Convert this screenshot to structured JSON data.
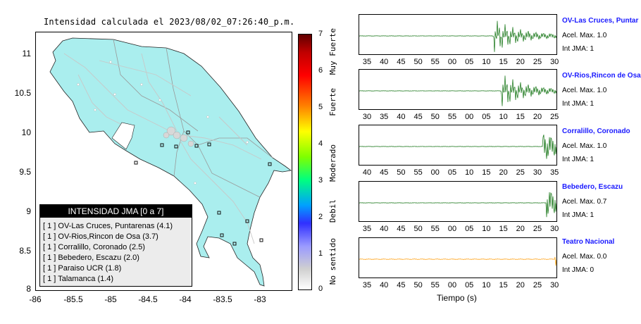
{
  "title": "Intensidad calculada el 2023/08/02_07:26:40_p.m.",
  "map": {
    "y_ticks": [
      "11",
      "10.5",
      "10",
      "9.5",
      "9",
      "8.5",
      "8"
    ],
    "x_ticks": [
      "-86",
      "-85.5",
      "-85",
      "-84.5",
      "-84",
      "-83.5",
      "-83"
    ]
  },
  "legend": {
    "header": "INTENSIDAD JMA [0 a 7]",
    "items": [
      "[ 1 ]  OV-Las Cruces, Puntarenas (4.1)",
      "[ 1 ]  OV-Rios,Rincon de Osa (3.7)",
      "[ 1 ]  Corralillo, Coronado (2.5)",
      "[ 1 ]  Bebedero, Escazu (2.0)",
      "[ 1 ]  Paraiso UCR (1.8)",
      "[ 1 ]  Talamanca (1.4)"
    ]
  },
  "colorbar": {
    "ticks": [
      "7",
      "6",
      "5",
      "4",
      "3",
      "2",
      "1",
      "0"
    ],
    "labels": [
      "Muy Fuerte",
      "Fuerte",
      "Moderado",
      "Debil",
      "No sentido"
    ]
  },
  "panels": [
    {
      "name": "OV-Las Cruces, Puntar",
      "accel": "Acel. Max. 1.0",
      "jma": "Int JMA: 1",
      "ticks": [
        "35",
        "40",
        "45",
        "50",
        "55",
        "00",
        "05",
        "10",
        "15",
        "20",
        "25",
        "30"
      ],
      "color": "#0a6e0a"
    },
    {
      "name": "OV-Rios,Rincon de Osa",
      "accel": "Acel. Max. 1.0",
      "jma": "Int JMA: 1",
      "ticks": [
        "30",
        "35",
        "40",
        "45",
        "50",
        "55",
        "00",
        "05",
        "10",
        "15",
        "20",
        "25"
      ],
      "color": "#0a6e0a"
    },
    {
      "name": "Corralillo, Coronado",
      "accel": "Acel. Max. 1.0",
      "jma": "Int JMA: 1",
      "ticks": [
        "40",
        "45",
        "50",
        "55",
        "00",
        "05",
        "10",
        "15",
        "20",
        "25",
        "30",
        "35"
      ],
      "color": "#0a6e0a"
    },
    {
      "name": "Bebedero, Escazu",
      "accel": "Acel. Max. 0.7",
      "jma": "Int JMA: 1",
      "ticks": [
        "35",
        "40",
        "45",
        "50",
        "55",
        "00",
        "05",
        "10",
        "15",
        "20",
        "25",
        "30"
      ],
      "color": "#0a6e0a"
    },
    {
      "name": "Teatro Nacional",
      "accel": "Acel. Max. 0.0",
      "jma": "Int JMA: 0",
      "ticks": [
        "35",
        "40",
        "45",
        "50",
        "55",
        "00",
        "05",
        "10",
        "15",
        "20",
        "25",
        "30"
      ],
      "color": "#ff9900"
    }
  ],
  "xlabel": "Tiempo (s)"
}
